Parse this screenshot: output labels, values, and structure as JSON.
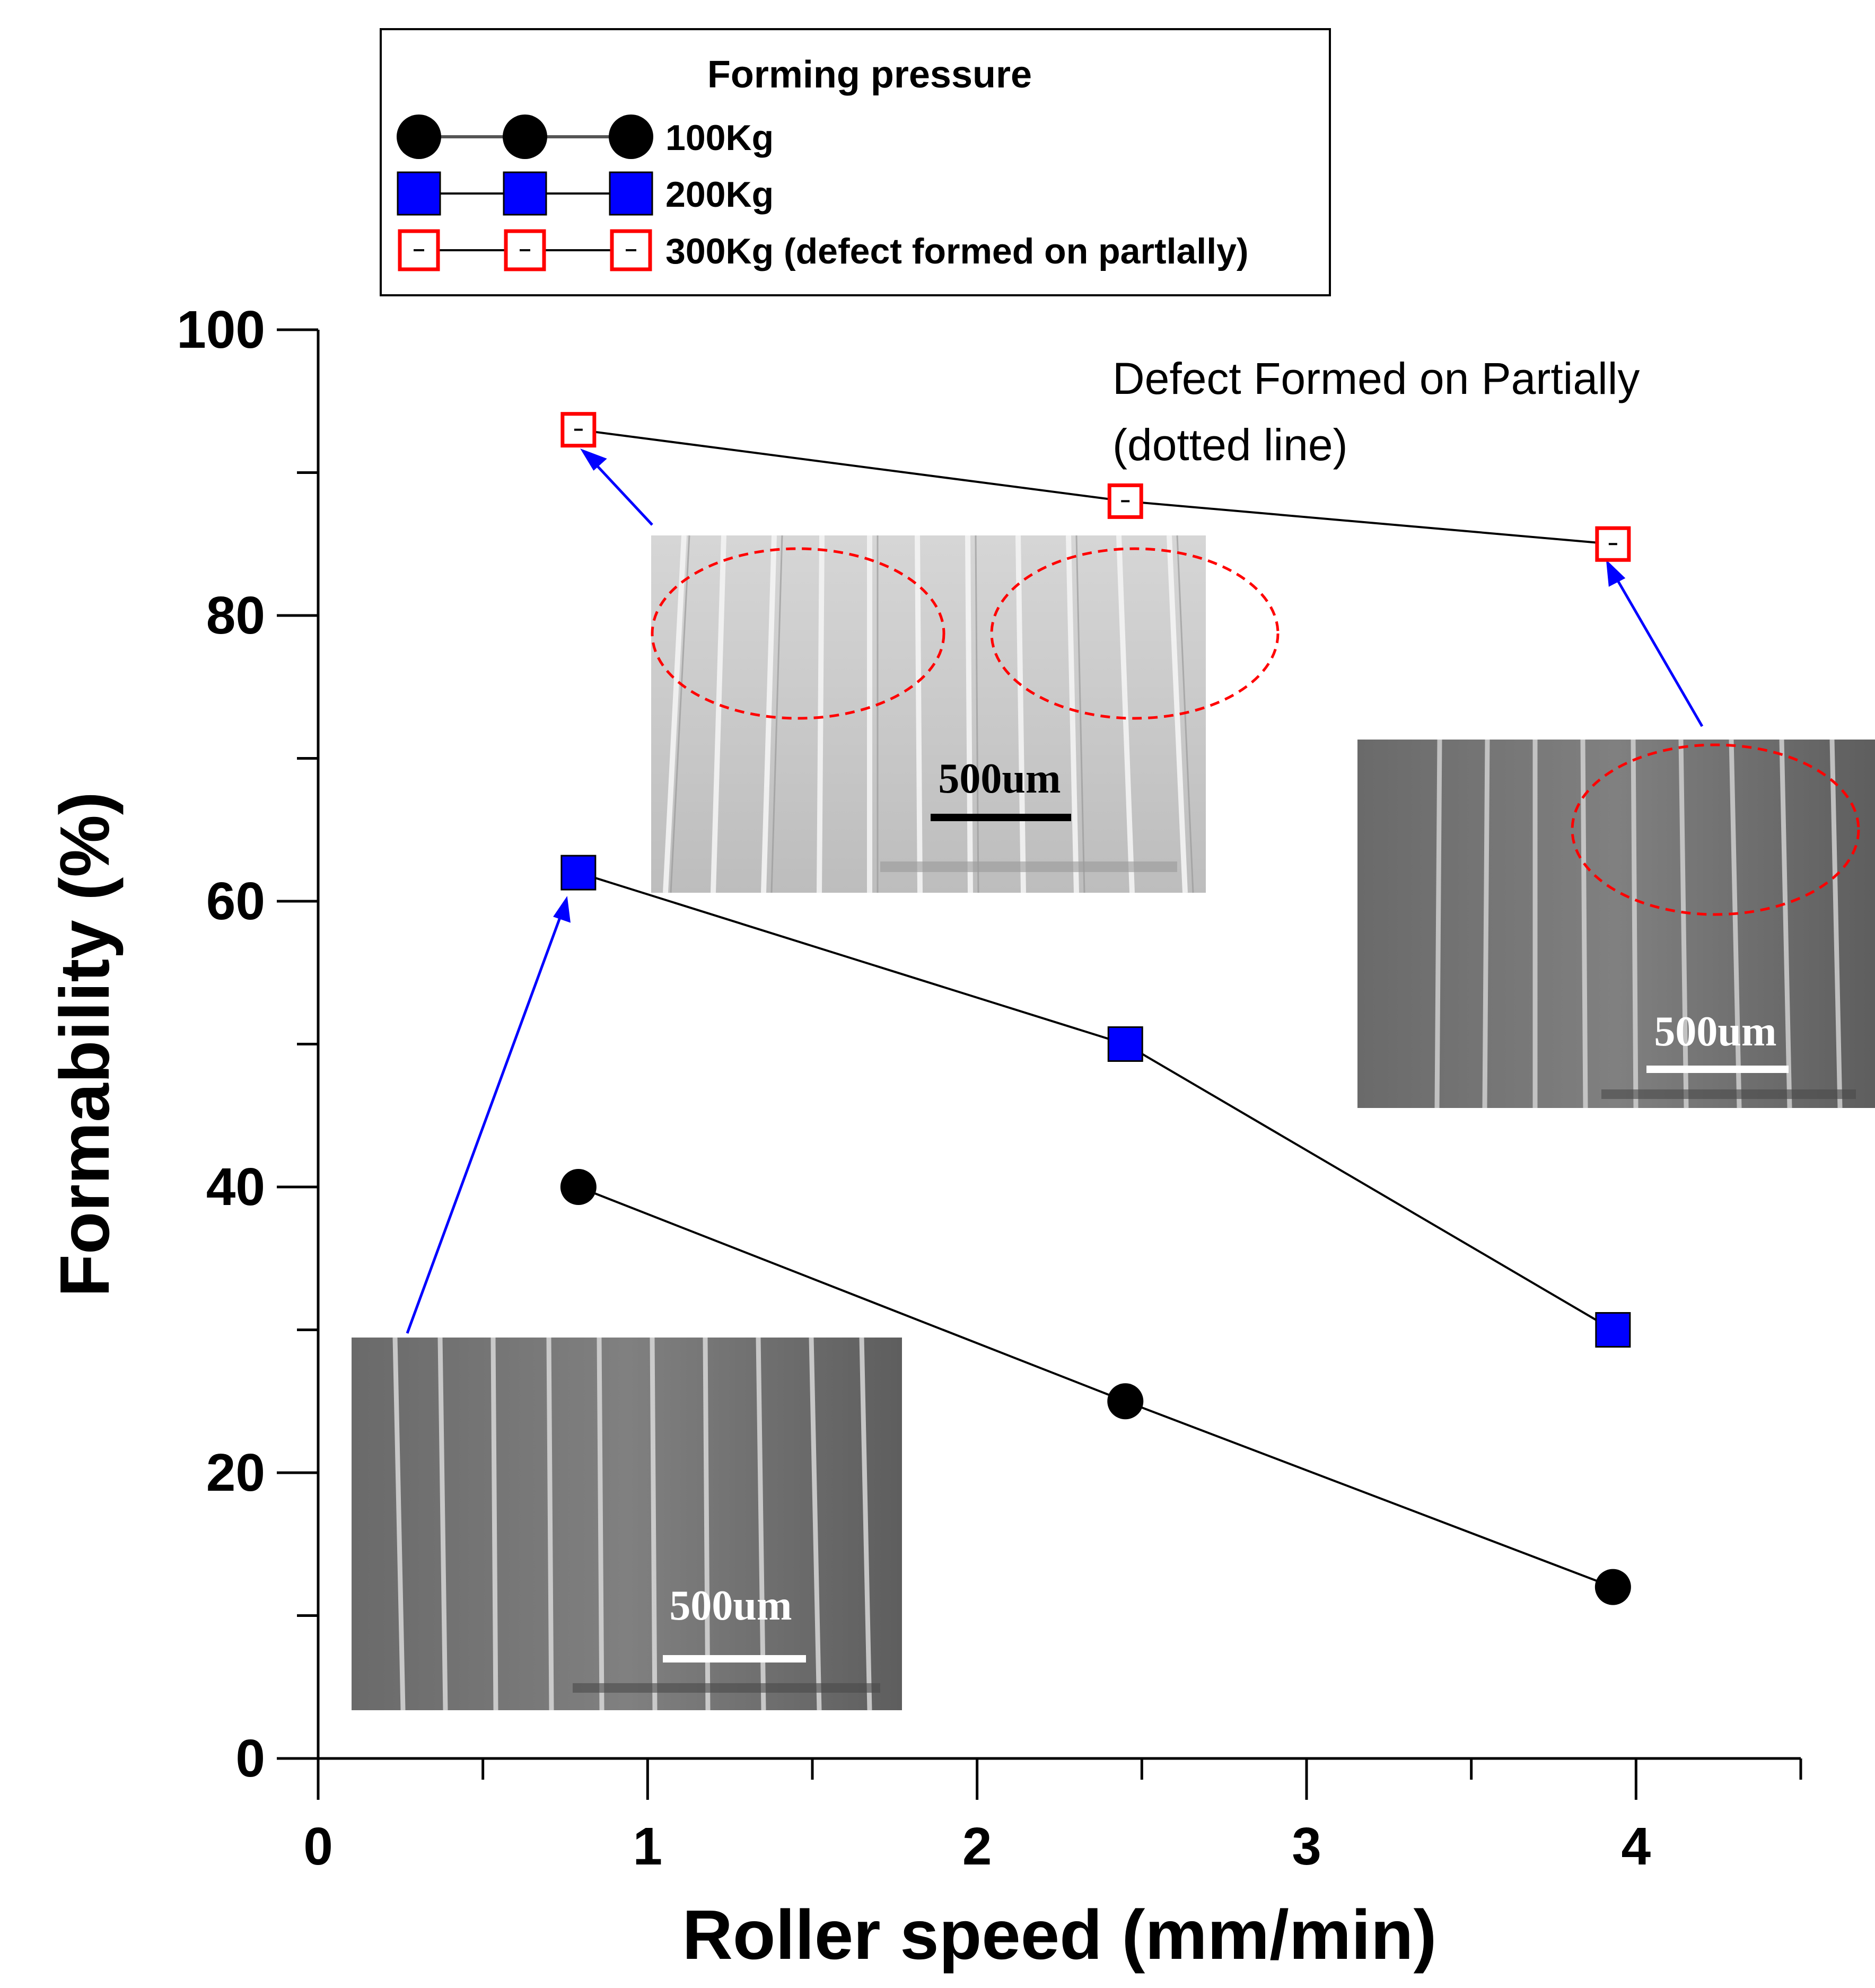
{
  "chart_data": {
    "type": "line",
    "title": "",
    "xlabel": "Roller speed (mm/min)",
    "ylabel": "Formability (%)",
    "xlim": [
      0,
      4.5
    ],
    "ylim": [
      0,
      100
    ],
    "x_ticks": [
      "0",
      "1",
      "2",
      "3",
      "4"
    ],
    "y_ticks": [
      "0",
      "20",
      "40",
      "60",
      "80",
      "100"
    ],
    "legend": {
      "title": "Forming pressure",
      "position": "top-left"
    },
    "series": [
      {
        "name": "100Kg",
        "label": "100Kg",
        "marker": "filled-circle",
        "color": "#000000",
        "x": [
          0.79,
          2.45,
          3.93
        ],
        "y": [
          40,
          25,
          12
        ]
      },
      {
        "name": "200Kg",
        "label": "200Kg",
        "marker": "filled-square",
        "color": "#0000ff",
        "x": [
          0.79,
          2.45,
          3.93
        ],
        "y": [
          62,
          50,
          30
        ]
      },
      {
        "name": "300Kg",
        "label": "300Kg (defect formed on partlally)",
        "marker": "open-square",
        "color": "#ff0000",
        "x": [
          0.79,
          2.45,
          3.93
        ],
        "y": [
          93,
          88,
          85
        ]
      }
    ],
    "annotations": {
      "defect_line1": "Defect Formed on Partially",
      "defect_line2": "(dotted line)"
    },
    "insets": [
      {
        "name": "sem-inset-300kg-low-speed",
        "scale_label": "500um",
        "tone": "light"
      },
      {
        "name": "sem-inset-300kg-high-speed",
        "scale_label": "500um",
        "tone": "dark"
      },
      {
        "name": "sem-inset-200kg-low-speed",
        "scale_label": "500um",
        "tone": "dark"
      }
    ]
  }
}
